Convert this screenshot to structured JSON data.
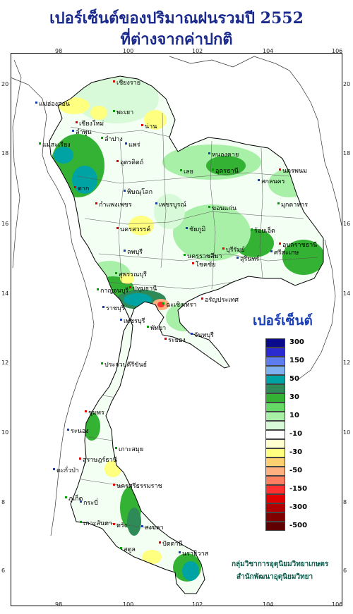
{
  "title": {
    "line1": "เปอร์เซ็นต์ของปริมาณฝนรวมปี 2552",
    "line2": "ที่ต่างจากค่าปกติ"
  },
  "axes": {
    "longitude_ticks": [
      "98",
      "100",
      "102",
      "104",
      "106"
    ],
    "latitude_ticks": [
      "20",
      "18",
      "16",
      "14",
      "12",
      "10",
      "8",
      "6"
    ]
  },
  "legend": {
    "title": "เปอร์เซ็นต์",
    "labels": [
      "300",
      "150",
      "50",
      "30",
      "10",
      "-10",
      "-30",
      "-50",
      "-150",
      "-300",
      "-500"
    ],
    "colors": [
      "#0a0a8c",
      "#2a2ad0",
      "#5e7cf0",
      "#7fb0f0",
      "#00a3a3",
      "#2e8b57",
      "#33b233",
      "#66d866",
      "#a8f0a8",
      "#d8fad8",
      "#ffffff",
      "#ffffd0",
      "#ffff80",
      "#ffd070",
      "#ffb080",
      "#ff8060",
      "#ff3030",
      "#e00000",
      "#b00000",
      "#800000",
      "#600000"
    ]
  },
  "places": [
    {
      "id": "chiangrai",
      "name": "เชียงราย"
    },
    {
      "id": "maehongson",
      "name": "แม่ฮ่องสอน"
    },
    {
      "id": "phayao",
      "name": "พะเยา"
    },
    {
      "id": "chiangmai",
      "name": "เชียงใหม่"
    },
    {
      "id": "lamphun",
      "name": "ลำพูน"
    },
    {
      "id": "lampang",
      "name": "ลำปาง"
    },
    {
      "id": "nan",
      "name": "น่าน"
    },
    {
      "id": "phrae",
      "name": "แพร่"
    },
    {
      "id": "maesariang",
      "name": "แม่สะเรียง"
    },
    {
      "id": "uttaradit",
      "name": "อุตรดิตถ์"
    },
    {
      "id": "nongkhai",
      "name": "หนองคาย"
    },
    {
      "id": "udon",
      "name": "อุดรธานี"
    },
    {
      "id": "nakhonphanom",
      "name": "นครพนม"
    },
    {
      "id": "sakon",
      "name": "สกลนคร"
    },
    {
      "id": "loei",
      "name": "เลย"
    },
    {
      "id": "tak",
      "name": "ตาก"
    },
    {
      "id": "phitsanulok",
      "name": "พิษณุโลก"
    },
    {
      "id": "mukdahan",
      "name": "มุกดาหาร"
    },
    {
      "id": "kamphaeng",
      "name": "กำแพงเพชร"
    },
    {
      "id": "phetchabun",
      "name": "เพชรบูรณ์"
    },
    {
      "id": "khonkaen",
      "name": "ขอนแก่น"
    },
    {
      "id": "nakhonsawan",
      "name": "นครสวรรค์"
    },
    {
      "id": "chaiyaphum",
      "name": "ชัยภูมิ"
    },
    {
      "id": "roiet",
      "name": "ร้อยเอ็ด"
    },
    {
      "id": "ubon",
      "name": "อุบลราชธานี"
    },
    {
      "id": "lopburi",
      "name": "ลพบุรี"
    },
    {
      "id": "nakhonratchasima",
      "name": "นครราชสีมา"
    },
    {
      "id": "chokchai",
      "name": "โชคชัย"
    },
    {
      "id": "surin",
      "name": "สุรินทร์"
    },
    {
      "id": "suphanburi",
      "name": "สุพรรณบุรี"
    },
    {
      "id": "buriram",
      "name": "บุรีรัมย์"
    },
    {
      "id": "sisaket",
      "name": "ศรีสะเกษ"
    },
    {
      "id": "kanchanaburi",
      "name": "กาญจนบุรี"
    },
    {
      "id": "pathumthani",
      "name": "ปทุมธานี"
    },
    {
      "id": "ratchaburi",
      "name": "ราชบุรี"
    },
    {
      "id": "chachoengsao",
      "name": "ฉะเชิงเทรา"
    },
    {
      "id": "aranyaprathet",
      "name": "อรัญประเทศ"
    },
    {
      "id": "phetchaburi",
      "name": "เพชรบุรี"
    },
    {
      "id": "pattaya",
      "name": "พัทยา"
    },
    {
      "id": "rayong",
      "name": "ระยอง"
    },
    {
      "id": "chanthaburi",
      "name": "จันทบุรี"
    },
    {
      "id": "prachuap",
      "name": "ประจวบคีรีขันธ์"
    },
    {
      "id": "chumphon",
      "name": "ชุมพร"
    },
    {
      "id": "ranong",
      "name": "ระนอง"
    },
    {
      "id": "kohsamui",
      "name": "เกาะสมุย"
    },
    {
      "id": "suratthani",
      "name": "สุราษฎร์ธานี"
    },
    {
      "id": "takuapa",
      "name": "ตะกั่วป่า"
    },
    {
      "id": "phuket",
      "name": "ภูเก็ต"
    },
    {
      "id": "nakhonsi",
      "name": "นครศรีธรรมราช"
    },
    {
      "id": "krabi",
      "name": "กระบี่"
    },
    {
      "id": "kolanta",
      "name": "เกาะลันตา"
    },
    {
      "id": "trang",
      "name": "ตรัง"
    },
    {
      "id": "songkhla",
      "name": "สงขลา"
    },
    {
      "id": "satun",
      "name": "สตูล"
    },
    {
      "id": "pattani",
      "name": "ปัตตานี"
    },
    {
      "id": "narathiwat",
      "name": "นราธิวาส"
    }
  ],
  "credits": {
    "line1": "กลุ่มวิชาการอุตุนิยมวิทยาเกษตร",
    "line2": "สำนักพัฒนาอุตุนิยมวิทยา"
  }
}
